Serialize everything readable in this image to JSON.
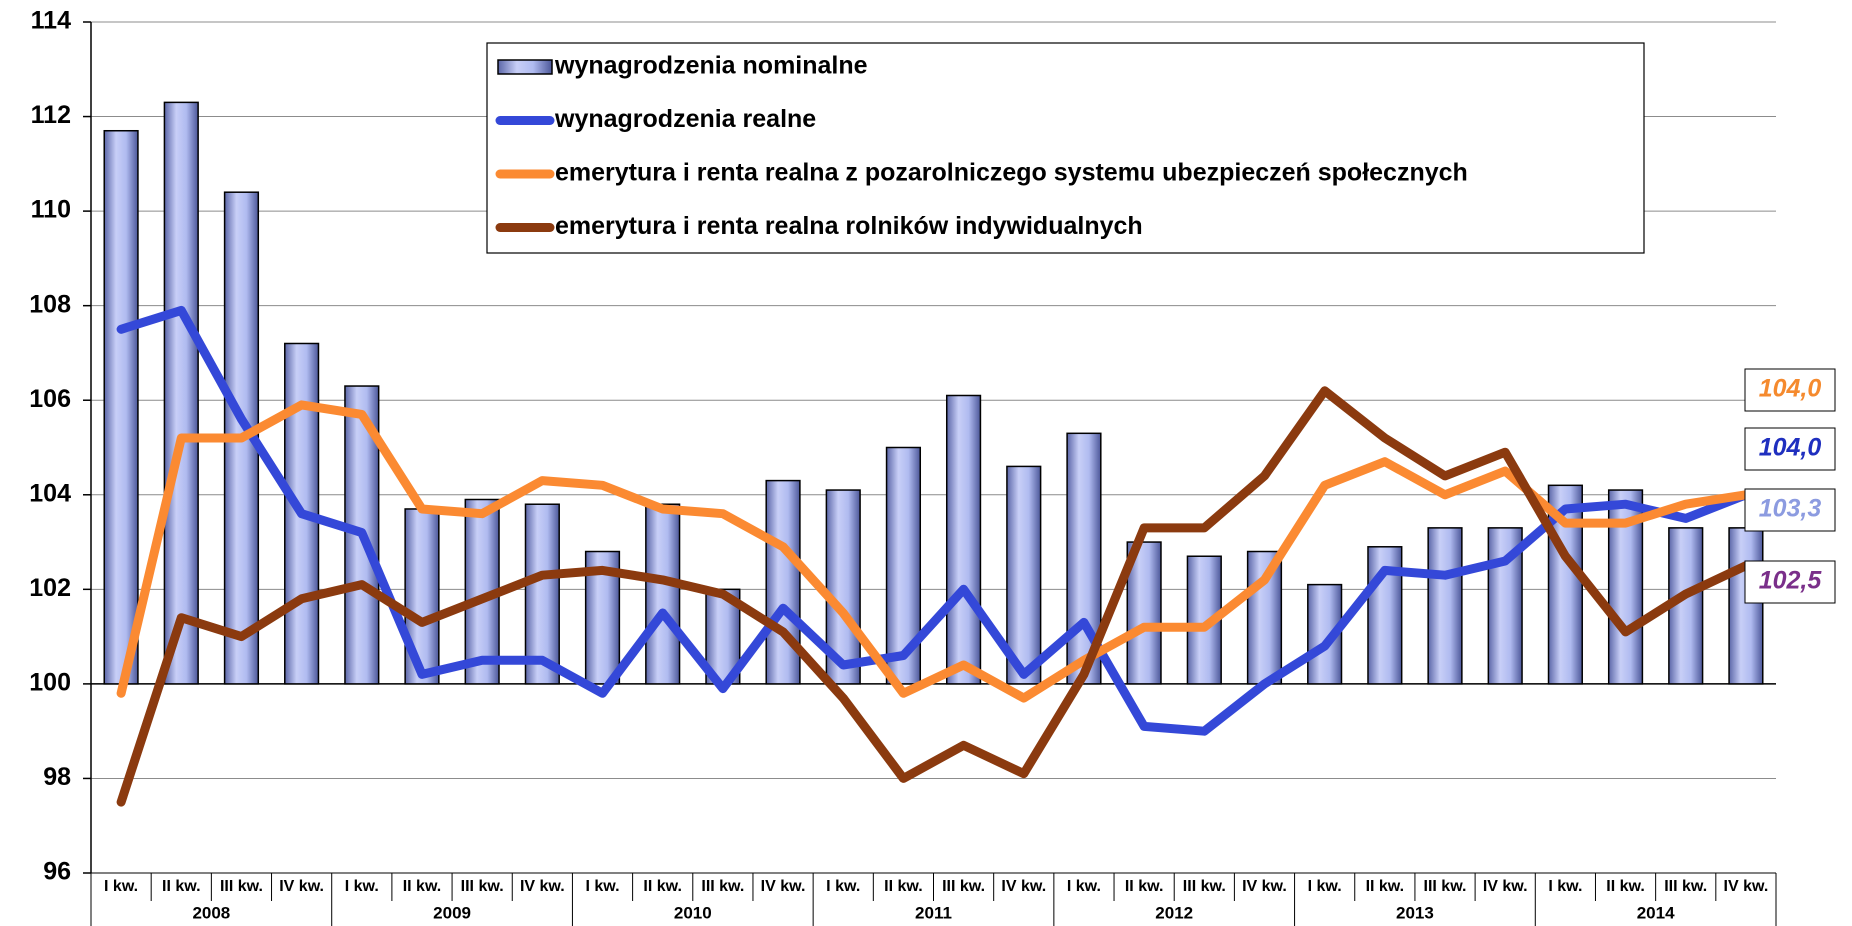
{
  "chart_data": {
    "type": "bar_line",
    "categories": [
      "I kw.",
      "II kw.",
      "III kw.",
      "IV kw.",
      "I kw.",
      "II kw.",
      "III kw.",
      "IV kw.",
      "I kw.",
      "II kw.",
      "III kw.",
      "IV kw.",
      "I kw.",
      "II kw.",
      "III kw.",
      "IV kw.",
      "I kw.",
      "II kw.",
      "III kw.",
      "IV kw.",
      "I kw.",
      "II kw.",
      "III kw.",
      "IV kw.",
      "I kw.",
      "II kw.",
      "III kw.",
      "IV kw."
    ],
    "years": [
      "2008",
      "2009",
      "2010",
      "2011",
      "2012",
      "2013",
      "2014"
    ],
    "ylim": [
      96,
      114
    ],
    "yticks": [
      96,
      98,
      100,
      102,
      104,
      106,
      108,
      110,
      112,
      114
    ],
    "grid": true,
    "baseline": 100,
    "series": [
      {
        "name": "wynagrodzenia nominalne",
        "kind": "bar",
        "color": "#a9b4ec",
        "label_color": "#8c9be0",
        "values": [
          111.7,
          112.3,
          110.4,
          107.2,
          106.3,
          103.7,
          103.9,
          103.8,
          102.8,
          103.8,
          102.0,
          104.3,
          104.1,
          105.0,
          106.1,
          104.6,
          105.3,
          103.0,
          102.7,
          102.8,
          102.1,
          102.9,
          103.3,
          103.3,
          104.2,
          104.1,
          103.3,
          103.3
        ],
        "value_labels": [
          null,
          null,
          null,
          null,
          null,
          null,
          null,
          null,
          null,
          null,
          null,
          null,
          null,
          null,
          null,
          null,
          null,
          null,
          null,
          null,
          null,
          null,
          null,
          null,
          null,
          null,
          null,
          "103,3"
        ]
      },
      {
        "name": "wynagrodzenia realne",
        "kind": "line",
        "color": "#3448d8",
        "label_color": "#1f2fbf",
        "values": [
          107.5,
          107.9,
          105.6,
          103.6,
          103.2,
          100.2,
          100.5,
          100.5,
          99.8,
          101.5,
          99.9,
          101.6,
          100.4,
          100.6,
          102.0,
          100.2,
          101.3,
          99.1,
          99.0,
          100.0,
          100.8,
          102.4,
          102.3,
          102.6,
          103.7,
          103.8,
          103.5,
          104.0
        ],
        "value_labels": [
          null,
          null,
          null,
          null,
          null,
          null,
          null,
          null,
          null,
          null,
          null,
          null,
          null,
          null,
          null,
          null,
          null,
          null,
          null,
          null,
          null,
          null,
          null,
          null,
          null,
          null,
          null,
          "104,0"
        ]
      },
      {
        "name": "emerytura i renta realna z pozarolniczego systemu ubezpieczeń społecznych",
        "kind": "line",
        "color": "#fb8a32",
        "label_color": "#f58a2e",
        "values": [
          99.8,
          105.2,
          105.2,
          105.9,
          105.7,
          103.7,
          103.6,
          104.3,
          104.2,
          103.7,
          103.6,
          102.9,
          101.5,
          99.8,
          100.4,
          99.7,
          100.5,
          101.2,
          101.2,
          102.2,
          104.2,
          104.7,
          104.0,
          104.5,
          103.4,
          103.4,
          103.8,
          104.0
        ],
        "value_labels": [
          null,
          null,
          null,
          null,
          null,
          null,
          null,
          null,
          null,
          null,
          null,
          null,
          null,
          null,
          null,
          null,
          null,
          null,
          null,
          null,
          null,
          null,
          null,
          null,
          null,
          null,
          null,
          "104,0"
        ]
      },
      {
        "name": "emerytura i renta realna rolników indywidualnych",
        "kind": "line",
        "color": "#8b3a0f",
        "label_color": "#7a2f8a",
        "values": [
          97.5,
          101.4,
          101.0,
          101.8,
          102.1,
          101.3,
          101.8,
          102.3,
          102.4,
          102.2,
          101.9,
          101.1,
          99.7,
          98.0,
          98.7,
          98.1,
          100.2,
          103.3,
          103.3,
          104.4,
          106.2,
          105.2,
          104.4,
          104.9,
          102.7,
          101.1,
          101.9,
          102.5
        ],
        "value_labels": [
          null,
          null,
          null,
          null,
          null,
          null,
          null,
          null,
          null,
          null,
          null,
          null,
          null,
          null,
          null,
          null,
          null,
          null,
          null,
          null,
          null,
          null,
          null,
          null,
          null,
          null,
          null,
          "102,5"
        ]
      }
    ]
  }
}
